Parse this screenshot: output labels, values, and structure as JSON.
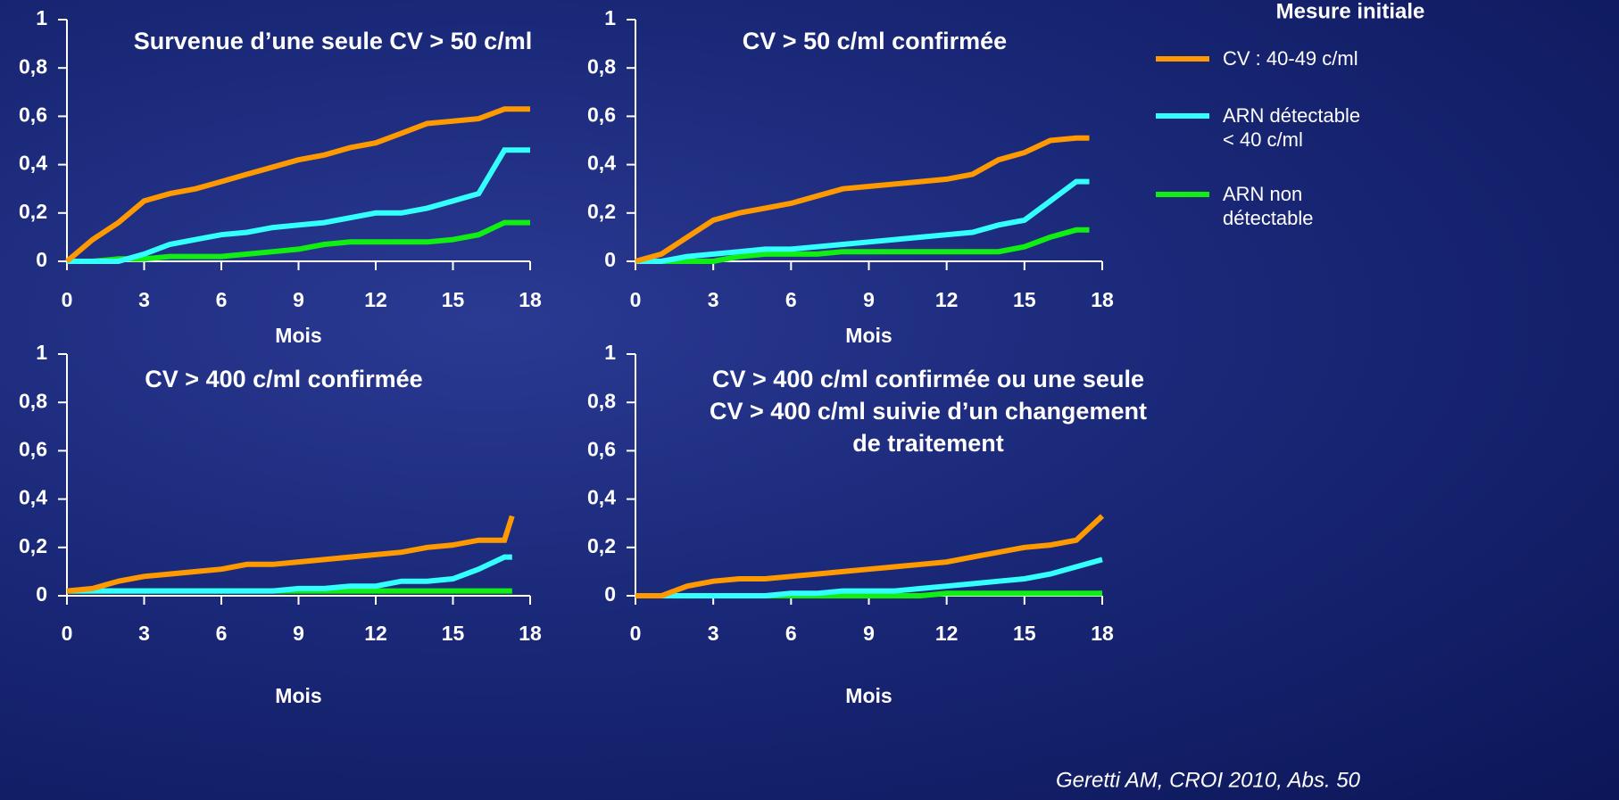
{
  "legend_title": "Mesure initiale",
  "source": "Geretti AM, CROI 2010, Abs. 50",
  "chart_data": [
    {
      "type": "line",
      "title": "Survenue d’une seule CV > 50 c/ml",
      "xlabel": "Mois",
      "x": [
        0,
        1,
        2,
        3,
        4,
        5,
        6,
        7,
        8,
        9,
        10,
        11,
        12,
        13,
        14,
        15,
        16,
        17,
        18
      ],
      "series": [
        {
          "name": "CV : 40-49 c/ml",
          "color": "#ff9900",
          "values": [
            0,
            0.09,
            0.16,
            0.25,
            0.28,
            0.3,
            0.33,
            0.36,
            0.39,
            0.42,
            0.44,
            0.47,
            0.49,
            0.53,
            0.57,
            0.58,
            0.59,
            0.63,
            0.63
          ]
        },
        {
          "name": "ARN détectable\n< 40 c/ml",
          "color": "#33ffff",
          "values": [
            0,
            0,
            0,
            0.03,
            0.07,
            0.09,
            0.11,
            0.12,
            0.14,
            0.15,
            0.16,
            0.18,
            0.2,
            0.2,
            0.22,
            0.25,
            0.28,
            0.46,
            0.46
          ]
        },
        {
          "name": "ARN non\ndétectable",
          "color": "#11ee11",
          "values": [
            0,
            0,
            0.01,
            0.01,
            0.02,
            0.02,
            0.02,
            0.03,
            0.04,
            0.05,
            0.07,
            0.08,
            0.08,
            0.08,
            0.08,
            0.09,
            0.11,
            0.16,
            0.16
          ]
        }
      ],
      "xlim": [
        0,
        18
      ],
      "xticks": [
        0,
        3,
        6,
        9,
        12,
        15,
        18
      ],
      "ylim": [
        0,
        1
      ],
      "yticks": [
        0,
        {
          "value": 0.2,
          "label": "0,2"
        },
        {
          "value": 0.4,
          "label": "0,4"
        },
        {
          "value": 0.6,
          "label": "0,6"
        },
        {
          "value": 0.8,
          "label": "0,8"
        },
        1
      ]
    },
    {
      "type": "line",
      "title": "CV > 50 c/ml confirmée",
      "xlabel": "Mois",
      "x": [
        0,
        1,
        2,
        3,
        4,
        5,
        6,
        7,
        8,
        9,
        10,
        11,
        12,
        13,
        14,
        15,
        16,
        17,
        17.5
      ],
      "series": [
        {
          "color": "#ff9900",
          "values": [
            0,
            0.03,
            0.1,
            0.17,
            0.2,
            0.22,
            0.24,
            0.27,
            0.3,
            0.31,
            0.32,
            0.33,
            0.34,
            0.36,
            0.42,
            0.45,
            0.5,
            0.51,
            0.51
          ]
        },
        {
          "color": "#33ffff",
          "values": [
            0,
            0,
            0.02,
            0.03,
            0.04,
            0.05,
            0.05,
            0.06,
            0.07,
            0.08,
            0.09,
            0.1,
            0.11,
            0.12,
            0.15,
            0.17,
            0.25,
            0.33,
            0.33
          ]
        },
        {
          "color": "#11ee11",
          "values": [
            0,
            0,
            0,
            0,
            0.02,
            0.03,
            0.03,
            0.03,
            0.04,
            0.04,
            0.04,
            0.04,
            0.04,
            0.04,
            0.04,
            0.06,
            0.1,
            0.13,
            0.13
          ]
        }
      ],
      "xlim": [
        0,
        18
      ],
      "xticks": [
        0,
        3,
        6,
        9,
        12,
        15,
        18
      ],
      "ylim": [
        0,
        1
      ],
      "yticks": [
        0,
        {
          "value": 0.2,
          "label": "0,2"
        },
        {
          "value": 0.4,
          "label": "0,4"
        },
        {
          "value": 0.6,
          "label": "0,6"
        },
        {
          "value": 0.8,
          "label": "0,8"
        },
        1
      ]
    },
    {
      "type": "line",
      "title": "CV > 400 c/ml confirmée",
      "xlabel": "Mois",
      "x": [
        0,
        1,
        2,
        3,
        4,
        5,
        6,
        7,
        8,
        9,
        10,
        11,
        12,
        13,
        14,
        15,
        16,
        17,
        17.3
      ],
      "series": [
        {
          "color": "#ff9900",
          "values": [
            0.02,
            0.03,
            0.06,
            0.08,
            0.09,
            0.1,
            0.11,
            0.13,
            0.13,
            0.14,
            0.15,
            0.16,
            0.17,
            0.18,
            0.2,
            0.21,
            0.23,
            0.23,
            0.33
          ]
        },
        {
          "color": "#33ffff",
          "values": [
            0.02,
            0.02,
            0.02,
            0.02,
            0.02,
            0.02,
            0.02,
            0.02,
            0.02,
            0.03,
            0.03,
            0.04,
            0.04,
            0.06,
            0.06,
            0.07,
            0.11,
            0.16,
            0.16
          ]
        },
        {
          "color": "#11ee11",
          "values": [
            0.02,
            0.02,
            0.02,
            0.02,
            0.02,
            0.02,
            0.02,
            0.02,
            0.02,
            0.02,
            0.02,
            0.02,
            0.02,
            0.02,
            0.02,
            0.02,
            0.02,
            0.02,
            0.02
          ]
        }
      ],
      "xlim": [
        0,
        18
      ],
      "xticks": [
        0,
        3,
        6,
        9,
        12,
        15,
        18
      ],
      "ylim": [
        0,
        1
      ],
      "yticks": [
        0,
        {
          "value": 0.2,
          "label": "0,2"
        },
        {
          "value": 0.4,
          "label": "0,4"
        },
        {
          "value": 0.6,
          "label": "0,6"
        },
        {
          "value": 0.8,
          "label": "0,8"
        },
        1
      ]
    },
    {
      "type": "line",
      "title": "CV > 400 c/ml confirmée ou une seule\nCV > 400 c/ml suivie d’un changement\nde traitement",
      "xlabel": "Mois",
      "x": [
        0,
        1,
        2,
        3,
        4,
        5,
        6,
        7,
        8,
        9,
        10,
        11,
        12,
        13,
        14,
        15,
        16,
        17,
        18
      ],
      "series": [
        {
          "color": "#ff9900",
          "values": [
            0,
            0,
            0.04,
            0.06,
            0.07,
            0.07,
            0.08,
            0.09,
            0.1,
            0.11,
            0.12,
            0.13,
            0.14,
            0.16,
            0.18,
            0.2,
            0.21,
            0.23,
            0.33
          ]
        },
        {
          "color": "#33ffff",
          "values": [
            0,
            0,
            0,
            0,
            0,
            0,
            0.01,
            0.01,
            0.02,
            0.02,
            0.02,
            0.03,
            0.04,
            0.05,
            0.06,
            0.07,
            0.09,
            0.12,
            0.15
          ]
        },
        {
          "color": "#11ee11",
          "values": [
            0,
            0,
            0,
            0,
            0,
            0,
            0,
            0,
            0,
            0,
            0,
            0,
            0.01,
            0.01,
            0.01,
            0.01,
            0.01,
            0.01,
            0.01
          ]
        }
      ],
      "xlim": [
        0,
        18
      ],
      "xticks": [
        0,
        3,
        6,
        9,
        12,
        15,
        18
      ],
      "ylim": [
        0,
        1
      ],
      "yticks": [
        0,
        {
          "value": 0.2,
          "label": "0,2"
        },
        {
          "value": 0.4,
          "label": "0,4"
        },
        {
          "value": 0.6,
          "label": "0,6"
        },
        {
          "value": 0.8,
          "label": "0,8"
        },
        1
      ]
    }
  ]
}
